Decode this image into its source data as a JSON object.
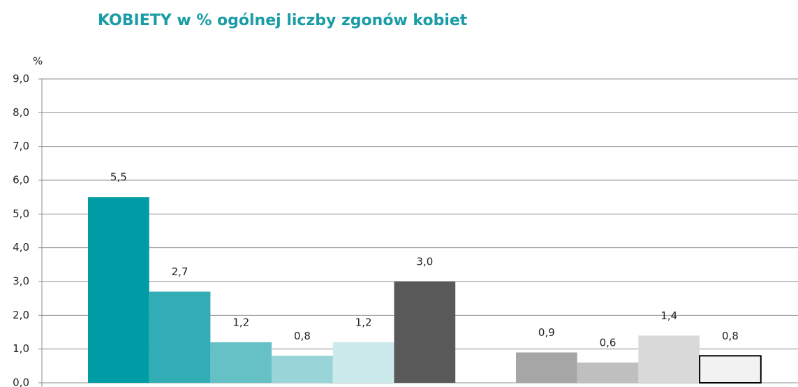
{
  "chart_data": {
    "type": "bar",
    "title": "KOBIETY w % ogólnej liczby zgonów kobiet",
    "y_label": "%",
    "categories": [
      null,
      null,
      null,
      null,
      null,
      null,
      null,
      null,
      null,
      null
    ],
    "values": [
      5.5,
      2.7,
      1.2,
      0.8,
      1.2,
      3.0,
      0.9,
      0.6,
      1.4,
      0.8
    ],
    "value_labels": [
      "5,5",
      "2,7",
      "1,2",
      "0,8",
      "1,2",
      "3,0",
      "0,9",
      "0,6",
      "1,4",
      "0,8"
    ],
    "colors": [
      "#009ca6",
      "#33adb5",
      "#66c1c7",
      "#99d5d8",
      "#cce9eb",
      "#595959",
      "#a6a6a6",
      "#bfbfbf",
      "#d9d9d9",
      "#f2f2f2"
    ],
    "ylim": [
      0,
      9
    ],
    "yticks": [
      {
        "value": 0,
        "label": "0,0"
      },
      {
        "value": 1,
        "label": "1,0"
      },
      {
        "value": 2,
        "label": "2,0"
      },
      {
        "value": 3,
        "label": "3,0"
      },
      {
        "value": 4,
        "label": "4,0"
      },
      {
        "value": 5,
        "label": "5,0"
      },
      {
        "value": 6,
        "label": "6,0"
      },
      {
        "value": 7,
        "label": "7,0"
      },
      {
        "value": 8,
        "label": "8,0"
      },
      {
        "value": 9,
        "label": "9,0"
      }
    ],
    "grid": true
  }
}
